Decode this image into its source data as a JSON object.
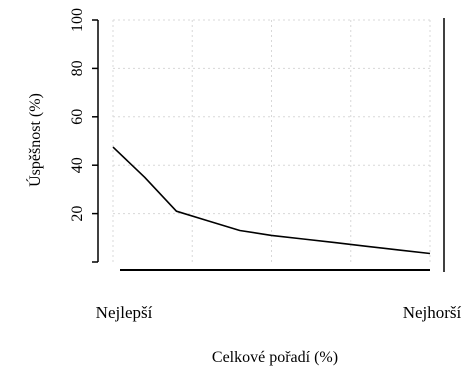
{
  "chart_data": {
    "type": "line",
    "xlabel": "Celkové pořadí (%)",
    "ylabel": "Úspěšnost (%)",
    "x_end_labels": [
      "Nejlepší",
      "Nejhorší"
    ],
    "xlim": [
      0,
      100
    ],
    "ylim": [
      0,
      100
    ],
    "yticks": [
      "20",
      "40",
      "60",
      "80",
      "100"
    ],
    "grid": true,
    "x": [
      0,
      10,
      20,
      30,
      40,
      50,
      60,
      70,
      80,
      90,
      100
    ],
    "y": [
      47.5,
      35,
      21,
      17,
      13,
      11,
      9.5,
      8,
      6.5,
      5,
      3.5
    ]
  }
}
